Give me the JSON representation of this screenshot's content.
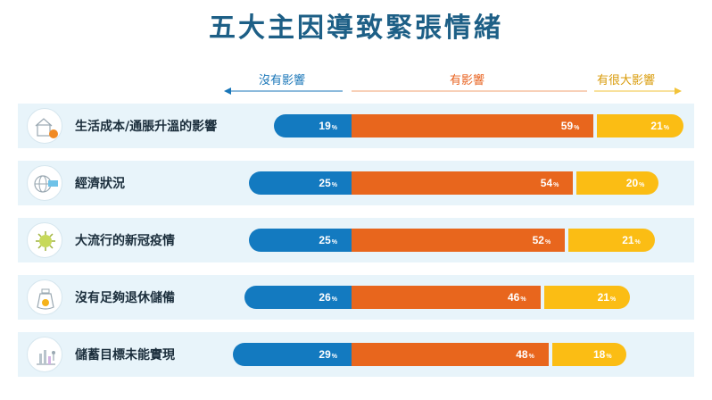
{
  "title": "五大主因導致緊張情緒",
  "legend": {
    "no_impact": "沒有影響",
    "impact": "有影響",
    "big_impact": "有很大影響"
  },
  "colors": {
    "no_impact": "#137ac0",
    "impact": "#e8661d",
    "big_impact": "#fbbd14",
    "title": "#1d5f86",
    "row_bg": "#e8f4fa"
  },
  "percent_sign": "%",
  "chart_data": {
    "type": "bar",
    "orientation": "horizontal-diverging",
    "title": "五大主因導致緊張情緒",
    "categories": [
      "生活成本/通脹升溫的影響",
      "經濟狀況",
      "大流行的新冠疫情",
      "沒有足夠退休儲備",
      "儲蓄目標未能實現"
    ],
    "icons": [
      "house-coin-icon",
      "globe-money-icon",
      "virus-icon",
      "money-bag-icon",
      "chart-person-icon"
    ],
    "series": [
      {
        "name": "沒有影響",
        "values": [
          19,
          25,
          25,
          26,
          29
        ]
      },
      {
        "name": "有影響",
        "values": [
          59,
          54,
          52,
          46,
          48
        ]
      },
      {
        "name": "有很大影響",
        "values": [
          21,
          20,
          21,
          21,
          18
        ]
      }
    ],
    "unit": "%",
    "legend_placement": "top"
  }
}
